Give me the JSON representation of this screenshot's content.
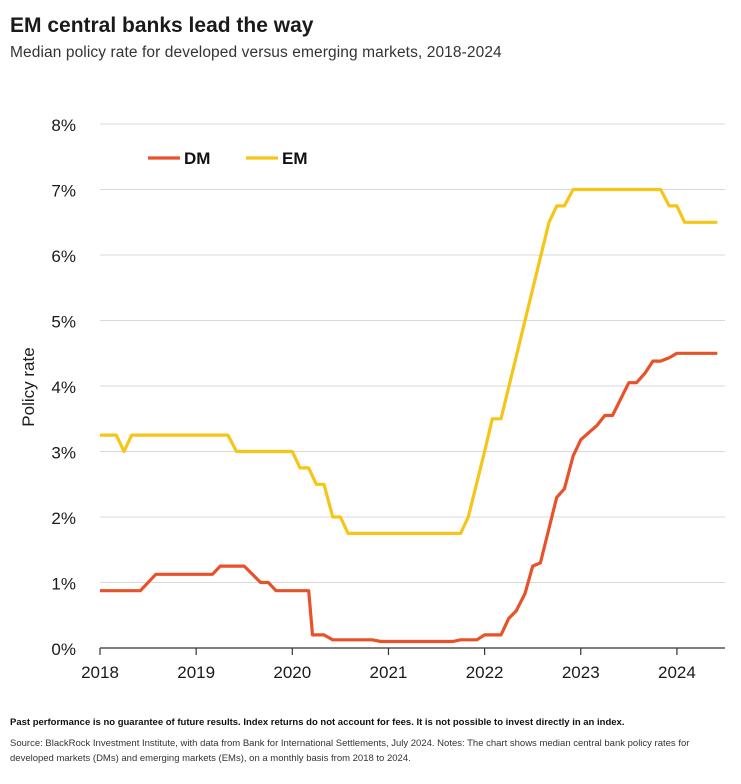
{
  "title": "EM central banks lead the way",
  "subtitle": "Median policy rate for developed versus emerging markets, 2018-2024",
  "disclaimer": "Past performance is no guarantee of future results. Index returns do not account for fees. It is not possible to invest directly in an index.",
  "source": "Source: BlackRock Investment Institute, with data from Bank for International Settlements, July 2024. Notes: The chart shows median central bank policy rates for developed markets (DMs) and emerging markets (EMs), on a monthly basis from 2018 to 2024.",
  "colors": {
    "DM": "#e8522a",
    "EM": "#f5c518"
  },
  "chart_data": {
    "type": "line",
    "title": "EM central banks lead the way",
    "subtitle": "Median policy rate for developed versus emerging markets, 2018-2024",
    "xlabel": "",
    "ylabel": "Policy rate",
    "xlim": [
      2018,
      2024.5
    ],
    "ylim": [
      0,
      8
    ],
    "y_ticks": [
      "0%",
      "1%",
      "2%",
      "3%",
      "4%",
      "5%",
      "6%",
      "7%",
      "8%"
    ],
    "x_ticks": [
      "2018",
      "2019",
      "2020",
      "2021",
      "2022",
      "2023",
      "2024"
    ],
    "grid": "horizontal",
    "legend": "top-left",
    "series": [
      {
        "name": "DM",
        "points": [
          [
            2018.0,
            0.875
          ],
          [
            2018.42,
            0.875
          ],
          [
            2018.58,
            1.125
          ],
          [
            2019.17,
            1.125
          ],
          [
            2019.25,
            1.25
          ],
          [
            2019.5,
            1.25
          ],
          [
            2019.67,
            1.0
          ],
          [
            2019.75,
            1.0
          ],
          [
            2019.83,
            0.875
          ],
          [
            2020.17,
            0.875
          ],
          [
            2020.21,
            0.2
          ],
          [
            2020.33,
            0.2
          ],
          [
            2020.42,
            0.125
          ],
          [
            2020.83,
            0.125
          ],
          [
            2020.92,
            0.1
          ],
          [
            2021.67,
            0.1
          ],
          [
            2021.75,
            0.125
          ],
          [
            2021.92,
            0.125
          ],
          [
            2022.0,
            0.2
          ],
          [
            2022.17,
            0.2
          ],
          [
            2022.25,
            0.45
          ],
          [
            2022.33,
            0.57
          ],
          [
            2022.42,
            0.83
          ],
          [
            2022.5,
            1.25
          ],
          [
            2022.58,
            1.3
          ],
          [
            2022.75,
            2.3
          ],
          [
            2022.83,
            2.43
          ],
          [
            2022.92,
            2.93
          ],
          [
            2023.0,
            3.18
          ],
          [
            2023.17,
            3.4
          ],
          [
            2023.25,
            3.55
          ],
          [
            2023.33,
            3.55
          ],
          [
            2023.5,
            4.05
          ],
          [
            2023.58,
            4.05
          ],
          [
            2023.67,
            4.2
          ],
          [
            2023.75,
            4.38
          ],
          [
            2023.83,
            4.38
          ],
          [
            2023.92,
            4.43
          ],
          [
            2024.0,
            4.5
          ],
          [
            2024.42,
            4.5
          ]
        ]
      },
      {
        "name": "EM",
        "points": [
          [
            2018.0,
            3.25
          ],
          [
            2018.17,
            3.25
          ],
          [
            2018.25,
            3.0
          ],
          [
            2018.33,
            3.25
          ],
          [
            2019.33,
            3.25
          ],
          [
            2019.42,
            3.0
          ],
          [
            2020.0,
            3.0
          ],
          [
            2020.08,
            2.75
          ],
          [
            2020.17,
            2.75
          ],
          [
            2020.25,
            2.5
          ],
          [
            2020.33,
            2.5
          ],
          [
            2020.42,
            2.0
          ],
          [
            2020.5,
            2.0
          ],
          [
            2020.58,
            1.75
          ],
          [
            2021.75,
            1.75
          ],
          [
            2021.83,
            2.0
          ],
          [
            2022.0,
            3.0
          ],
          [
            2022.08,
            3.5
          ],
          [
            2022.17,
            3.5
          ],
          [
            2022.42,
            5.0
          ],
          [
            2022.67,
            6.5
          ],
          [
            2022.75,
            6.75
          ],
          [
            2022.83,
            6.75
          ],
          [
            2022.92,
            7.0
          ],
          [
            2023.83,
            7.0
          ],
          [
            2023.92,
            6.75
          ],
          [
            2024.0,
            6.75
          ],
          [
            2024.08,
            6.5
          ],
          [
            2024.42,
            6.5
          ]
        ]
      }
    ]
  }
}
